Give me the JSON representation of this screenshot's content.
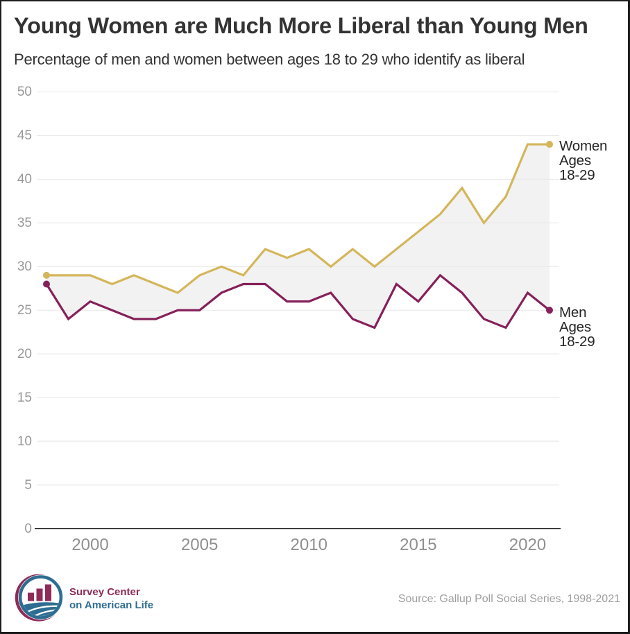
{
  "header": {
    "title": "Young Women are Much More Liberal than Young Men",
    "subtitle": "Percentage of men and women between ages 18 to 29 who identify as liberal"
  },
  "chart_data": {
    "type": "line",
    "title": "Young Women are Much More Liberal than Young Men",
    "subtitle": "Percentage of men and women between ages 18 to 29 who identify as liberal",
    "x": [
      1998,
      1999,
      2000,
      2001,
      2002,
      2003,
      2004,
      2005,
      2006,
      2007,
      2008,
      2009,
      2010,
      2011,
      2012,
      2013,
      2014,
      2015,
      2016,
      2017,
      2018,
      2019,
      2020,
      2021
    ],
    "series": [
      {
        "name": "Women Ages 18-29",
        "color": "#d4b65a",
        "values": [
          29,
          29,
          29,
          28,
          29,
          28,
          27,
          29,
          30,
          29,
          32,
          31,
          32,
          30,
          32,
          30,
          32,
          34,
          36,
          39,
          35,
          38,
          44,
          44
        ]
      },
      {
        "name": "Men Ages 18-29",
        "color": "#85215a",
        "values": [
          28,
          24,
          26,
          25,
          24,
          24,
          25,
          25,
          27,
          28,
          28,
          26,
          26,
          27,
          24,
          23,
          28,
          26,
          29,
          27,
          24,
          23,
          27,
          25
        ]
      }
    ],
    "x_tick_labels": [
      "2000",
      "2005",
      "2010",
      "2015",
      "2020"
    ],
    "x_tick_values": [
      2000,
      2005,
      2010,
      2015,
      2020
    ],
    "y_tick_labels": [
      "0",
      "5",
      "10",
      "15",
      "20",
      "25",
      "30",
      "35",
      "40",
      "45",
      "50"
    ],
    "y_tick_values": [
      0,
      5,
      10,
      15,
      20,
      25,
      30,
      35,
      40,
      45,
      50
    ],
    "ylim": [
      0,
      50
    ],
    "grid": "horizontal",
    "area_between_series_color": "#f2f2f2",
    "gridline_color": "#e8e8e8",
    "axis_line_color": "#3d3d3d",
    "legend_position": "right-of-line-ends",
    "end_point_markers": true
  },
  "annotations": {
    "women_label": "Women\nAges\n18-29",
    "men_label": "Men\nAges\n18-29"
  },
  "footer": {
    "logo_line1": "Survey Center",
    "logo_line2": "on American Life",
    "source": "Source: Gallup Poll Social Series, 1998-2021"
  },
  "colors": {
    "women_line": "#d4b65a",
    "men_line": "#85215a",
    "area_fill": "#f2f2f2",
    "gridline": "#e8e8e8",
    "axis_line": "#3d3d3d",
    "title_text": "#333333",
    "tick_text": "#979797",
    "logo_maroon": "#8e2b57",
    "logo_blue": "#2e6d92",
    "border": "#1c1c1c"
  }
}
